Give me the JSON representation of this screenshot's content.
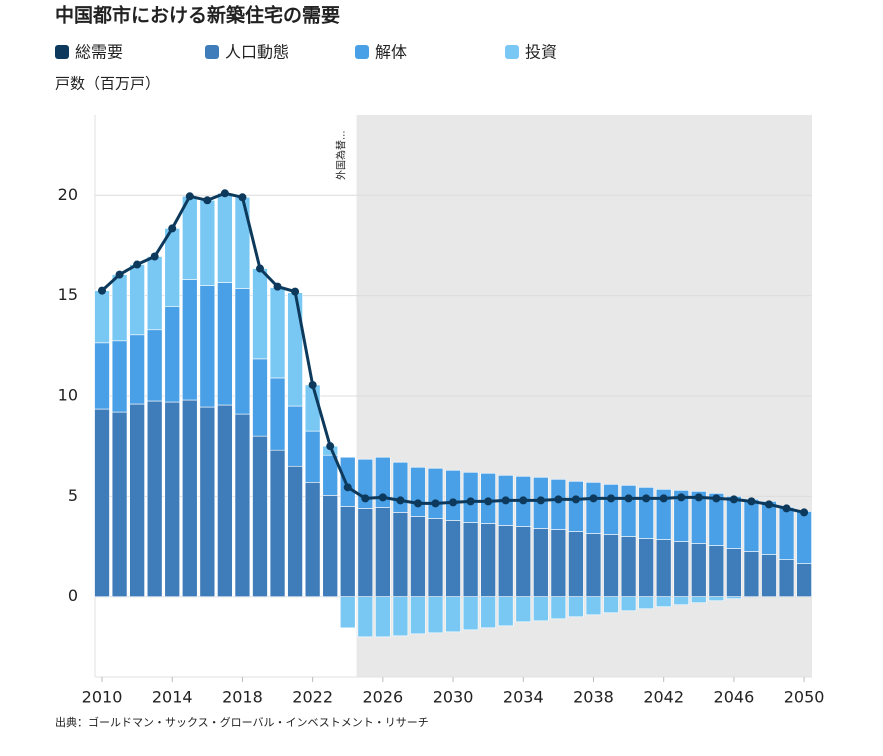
{
  "chart_data": {
    "type": "bar",
    "title": "中国都市における新築住宅の需要",
    "y_label": "戸数（百万戸）",
    "source": "出典：ゴールドマン・サックス・グローバル・インベストメント・リサーチ",
    "annotation": "外国為替...",
    "shaded_from": 2024.5,
    "x": [
      2010,
      2011,
      2012,
      2013,
      2014,
      2015,
      2016,
      2017,
      2018,
      2019,
      2020,
      2021,
      2022,
      2023,
      2024,
      2025,
      2026,
      2027,
      2028,
      2029,
      2030,
      2031,
      2032,
      2033,
      2034,
      2035,
      2036,
      2037,
      2038,
      2039,
      2040,
      2041,
      2042,
      2043,
      2044,
      2045,
      2046,
      2047,
      2048,
      2049,
      2050
    ],
    "xlim": [
      2009.6,
      2050.45
    ],
    "xticks": [
      2010,
      2014,
      2018,
      2022,
      2026,
      2030,
      2034,
      2038,
      2042,
      2046,
      2050
    ],
    "ylim": [
      -4,
      24
    ],
    "yticks": [
      0,
      5,
      10,
      15,
      20
    ],
    "grid": true,
    "series": [
      {
        "name": "総需要",
        "type": "line",
        "color": "#0d3a5c",
        "values": [
          15.25,
          16.05,
          16.55,
          16.95,
          18.35,
          19.95,
          19.75,
          20.1,
          19.9,
          16.35,
          15.45,
          15.2,
          10.55,
          7.5,
          5.45,
          4.9,
          4.95,
          4.8,
          4.65,
          4.65,
          4.7,
          4.75,
          4.75,
          4.8,
          4.8,
          4.8,
          4.85,
          4.85,
          4.9,
          4.9,
          4.9,
          4.9,
          4.9,
          4.95,
          4.95,
          4.9,
          4.85,
          4.75,
          4.6,
          4.4,
          4.2
        ]
      },
      {
        "name": "人口動態",
        "type": "bar",
        "color": "#3f7cba",
        "values": [
          9.35,
          9.2,
          9.6,
          9.75,
          9.7,
          9.8,
          9.45,
          9.55,
          9.1,
          8.0,
          7.3,
          6.5,
          5.7,
          5.05,
          4.5,
          4.4,
          4.45,
          4.2,
          4.0,
          3.9,
          3.8,
          3.7,
          3.65,
          3.55,
          3.5,
          3.4,
          3.35,
          3.25,
          3.15,
          3.1,
          3.0,
          2.9,
          2.85,
          2.75,
          2.65,
          2.55,
          2.4,
          2.25,
          2.1,
          1.85,
          1.65
        ]
      },
      {
        "name": "解体",
        "type": "bar",
        "color": "#4aa0e6",
        "values": [
          3.3,
          3.55,
          3.45,
          3.55,
          4.75,
          6.0,
          6.05,
          6.1,
          6.25,
          3.85,
          3.6,
          3.0,
          2.55,
          2.0,
          2.45,
          2.45,
          2.5,
          2.5,
          2.45,
          2.5,
          2.5,
          2.5,
          2.5,
          2.5,
          2.5,
          2.55,
          2.5,
          2.5,
          2.55,
          2.5,
          2.55,
          2.55,
          2.5,
          2.55,
          2.6,
          2.6,
          2.6,
          2.6,
          2.65,
          2.6,
          2.6
        ]
      },
      {
        "name": "投資",
        "type": "bar",
        "color": "#78c8f3",
        "values": [
          2.6,
          3.3,
          3.5,
          3.65,
          3.9,
          4.15,
          4.25,
          4.45,
          4.55,
          4.5,
          4.5,
          5.65,
          2.3,
          0.45,
          -1.55,
          -2.0,
          -2.0,
          -1.95,
          -1.85,
          -1.8,
          -1.75,
          -1.65,
          -1.55,
          -1.45,
          -1.25,
          -1.2,
          -1.1,
          -1.0,
          -0.9,
          -0.8,
          -0.7,
          -0.6,
          -0.5,
          -0.4,
          -0.3,
          -0.2,
          -0.1,
          0,
          0,
          0,
          0
        ]
      }
    ]
  }
}
